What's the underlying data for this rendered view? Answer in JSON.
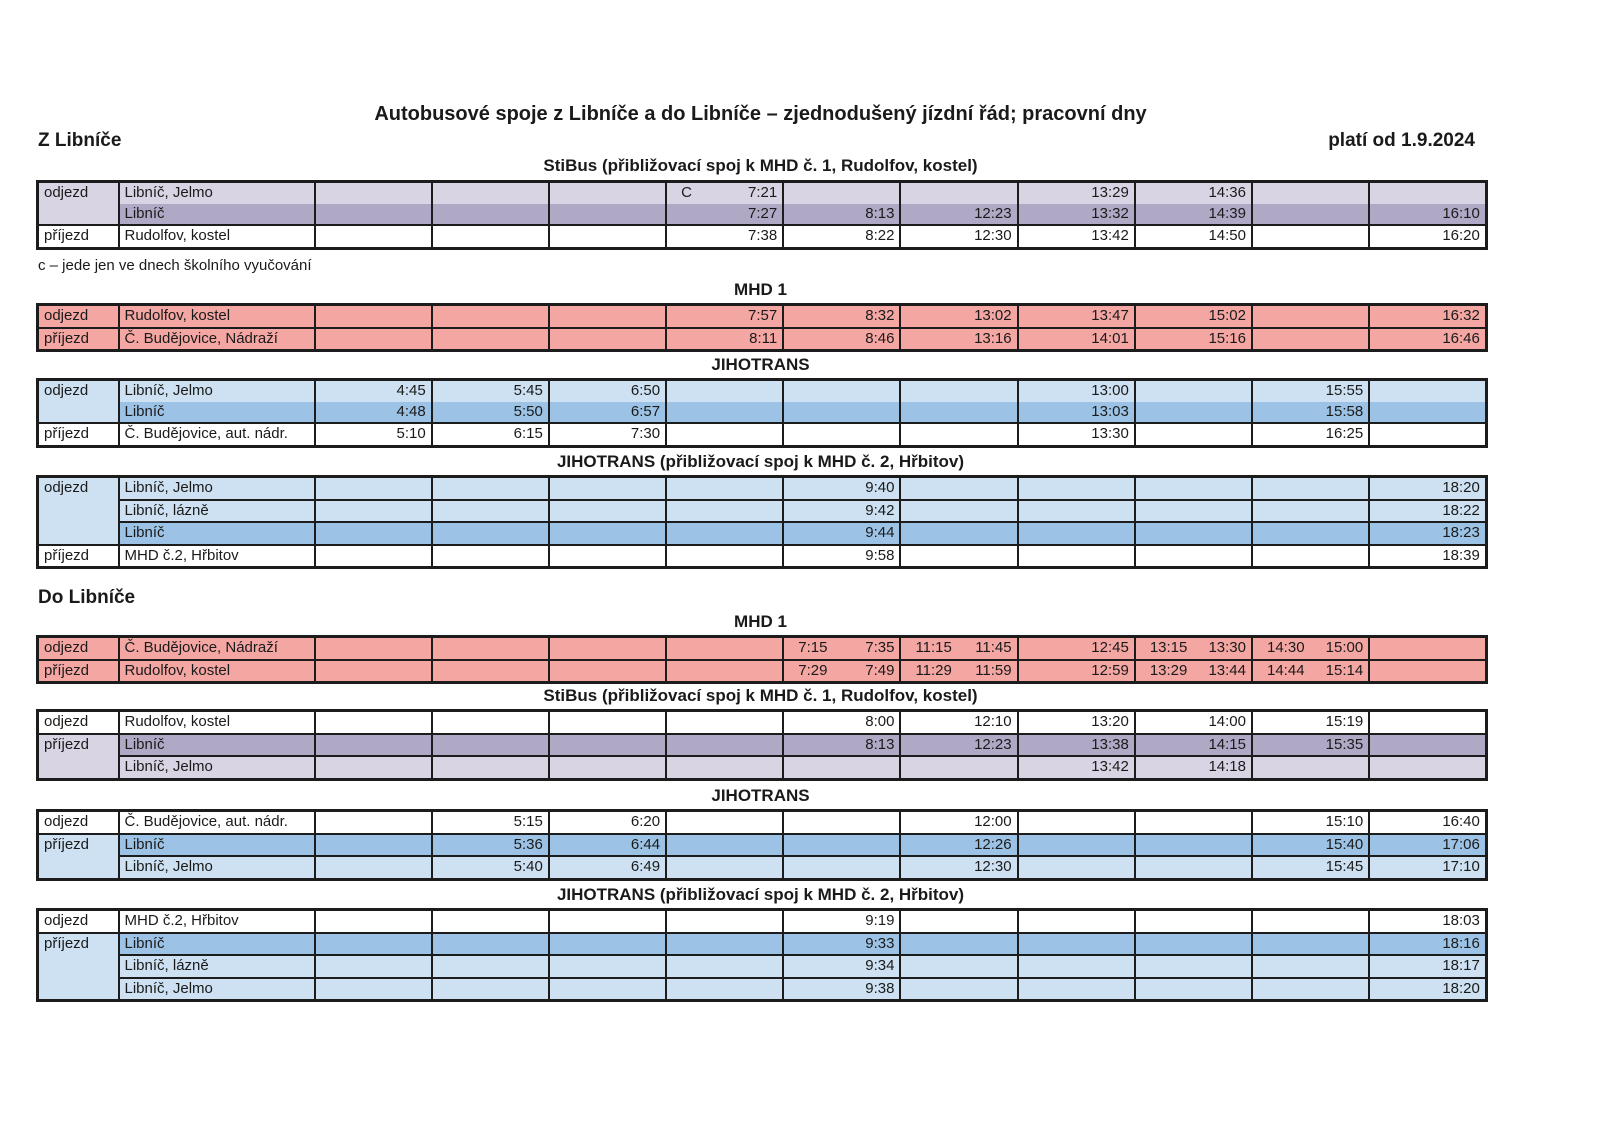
{
  "page": {
    "title": "Autobusové spoje z Libníče a do Libníče – zjednodušený jízdní řád; pracovní dny",
    "heading_from": "Z Libníče",
    "heading_to": "Do Libníče",
    "valid_from": "platí od 1.9.2024",
    "note": "c – jede jen ve dnech školního vyučování"
  },
  "colors": {
    "white": "#ffffff",
    "lavender_light": "#d9d4e3",
    "lavender_medium": "#b0a9c6",
    "pink": "#f4a6a3",
    "blue_light": "#cde1f2",
    "blue_medium": "#9cc3e5"
  },
  "tables": [
    {
      "id": "stibus-z-libnice",
      "heading": "StiBus (přibližovací spoj k MHD č. 1, Rudolfov, kostel)",
      "rows": [
        {
          "label": "odjezd",
          "label_rowspan": 2,
          "label_bg": "lavender_light",
          "stop": "Libníč, Jelmo",
          "bg": "lavender_light",
          "no_border_below": true,
          "cells": [
            "",
            "",
            "",
            {
              "l": "C",
              "r": "7:21"
            },
            "",
            "",
            "13:29",
            "14:36",
            "",
            ""
          ]
        },
        {
          "stop": "Libníč",
          "bg": "lavender_medium",
          "cells": [
            "",
            "",
            "",
            "7:27",
            "8:13",
            "12:23",
            "13:32",
            "14:39",
            "",
            "16:10"
          ]
        },
        {
          "label": "příjezd",
          "label_bg": "white",
          "stop": "Rudolfov, kostel",
          "bg": "white",
          "cells": [
            "",
            "",
            "",
            "7:38",
            "8:22",
            "12:30",
            "13:42",
            "14:50",
            "",
            "16:20"
          ]
        }
      ]
    },
    {
      "id": "mhd1-z-libnice",
      "heading": "MHD 1",
      "rows": [
        {
          "label": "odjezd",
          "label_bg": "pink",
          "stop": "Rudolfov, kostel",
          "bg": "pink",
          "cells": [
            "",
            "",
            "",
            "7:57",
            "8:32",
            "13:02",
            "13:47",
            "15:02",
            "",
            "16:32"
          ]
        },
        {
          "label": "příjezd",
          "label_bg": "pink",
          "stop": "Č. Budějovice, Nádraží",
          "bg": "pink",
          "cells": [
            "",
            "",
            "",
            "8:11",
            "8:46",
            "13:16",
            "14:01",
            "15:16",
            "",
            "16:46"
          ]
        }
      ]
    },
    {
      "id": "jihotrans-z-libnice",
      "heading": "JIHOTRANS",
      "rows": [
        {
          "label": "odjezd",
          "label_rowspan": 2,
          "label_bg": "blue_light",
          "stop": "Libníč, Jelmo",
          "bg": "blue_light",
          "no_border_below": true,
          "cells": [
            "4:45",
            "5:45",
            "6:50",
            "",
            "",
            "",
            "13:00",
            "",
            "15:55",
            ""
          ]
        },
        {
          "stop": "Libníč",
          "bg": "blue_medium",
          "cells": [
            "4:48",
            "5:50",
            "6:57",
            "",
            "",
            "",
            "13:03",
            "",
            "15:58",
            ""
          ]
        },
        {
          "label": "příjezd",
          "label_bg": "white",
          "stop": "Č. Budějovice, aut. nádr.",
          "bg": "white",
          "cells": [
            "5:10",
            "6:15",
            "7:30",
            "",
            "",
            "",
            "13:30",
            "",
            "16:25",
            ""
          ]
        }
      ]
    },
    {
      "id": "jihotrans-pribl-z-libnice",
      "heading": "JIHOTRANS (přibližovací spoj k MHD č. 2, Hřbitov)",
      "rows": [
        {
          "label": "odjezd",
          "label_rowspan": 3,
          "label_bg": "blue_light",
          "stop": "Libníč, Jelmo",
          "bg": "blue_light",
          "cells": [
            "",
            "",
            "",
            "",
            "9:40",
            "",
            "",
            "",
            "",
            "18:20"
          ]
        },
        {
          "stop": "Libníč, lázně",
          "bg": "blue_light",
          "cells": [
            "",
            "",
            "",
            "",
            "9:42",
            "",
            "",
            "",
            "",
            "18:22"
          ]
        },
        {
          "stop": "Libníč",
          "bg": "blue_medium",
          "cells": [
            "",
            "",
            "",
            "",
            "9:44",
            "",
            "",
            "",
            "",
            "18:23"
          ]
        },
        {
          "label": "příjezd",
          "label_bg": "white",
          "stop": "MHD č.2, Hřbitov",
          "bg": "white",
          "cells": [
            "",
            "",
            "",
            "",
            "9:58",
            "",
            "",
            "",
            "",
            "18:39"
          ]
        }
      ]
    },
    {
      "id": "mhd1-do-libnice",
      "heading": "MHD 1",
      "rows": [
        {
          "label": "odjezd",
          "label_bg": "pink",
          "stop": "Č. Budějovice, Nádraží",
          "bg": "pink",
          "cells": [
            "",
            "",
            "",
            "",
            {
              "l": "7:15",
              "r": "7:35"
            },
            {
              "l": "11:15",
              "r": "11:45"
            },
            "12:45",
            {
              "l": "13:15",
              "r": "13:30"
            },
            {
              "l": "14:30",
              "r": "15:00"
            },
            ""
          ]
        },
        {
          "label": "příjezd",
          "label_bg": "pink",
          "stop": "Rudolfov, kostel",
          "bg": "pink",
          "cells": [
            "",
            "",
            "",
            "",
            {
              "l": "7:29",
              "r": "7:49"
            },
            {
              "l": "11:29",
              "r": "11:59"
            },
            "12:59",
            {
              "l": "13:29",
              "r": "13:44"
            },
            {
              "l": "14:44",
              "r": "15:14"
            },
            ""
          ]
        }
      ]
    },
    {
      "id": "stibus-do-libnice",
      "heading": "StiBus (přibližovací spoj k MHD č. 1, Rudolfov, kostel)",
      "rows": [
        {
          "label": "odjezd",
          "label_bg": "white",
          "stop": "Rudolfov, kostel",
          "bg": "white",
          "cells": [
            "",
            "",
            "",
            "",
            "8:00",
            "12:10",
            "13:20",
            "14:00",
            "15:19",
            ""
          ]
        },
        {
          "label": "příjezd",
          "label_rowspan": 2,
          "label_bg": "lavender_light",
          "stop": "Libníč",
          "bg": "lavender_medium",
          "cells": [
            "",
            "",
            "",
            "",
            "8:13",
            "12:23",
            "13:38",
            "14:15",
            "15:35",
            ""
          ]
        },
        {
          "stop": "Libníč, Jelmo",
          "bg": "lavender_light",
          "cells": [
            "",
            "",
            "",
            "",
            "",
            "",
            "13:42",
            "14:18",
            "",
            ""
          ]
        }
      ]
    },
    {
      "id": "jihotrans-do-libnice",
      "heading": "JIHOTRANS",
      "rows": [
        {
          "label": "odjezd",
          "label_bg": "white",
          "stop": "Č. Budějovice, aut. nádr.",
          "bg": "white",
          "cells": [
            "",
            "5:15",
            "6:20",
            "",
            "",
            "12:00",
            "",
            "",
            "15:10",
            "16:40"
          ]
        },
        {
          "label": "příjezd",
          "label_rowspan": 2,
          "label_bg": "blue_light",
          "stop": "Libníč",
          "bg": "blue_medium",
          "cells": [
            "",
            "5:36",
            "6:44",
            "",
            "",
            "12:26",
            "",
            "",
            "15:40",
            "17:06"
          ]
        },
        {
          "stop": "Libníč, Jelmo",
          "bg": "blue_light",
          "cells": [
            "",
            "5:40",
            "6:49",
            "",
            "",
            "12:30",
            "",
            "",
            "15:45",
            "17:10"
          ]
        }
      ]
    },
    {
      "id": "jihotrans-pribl-do-libnice",
      "heading": "JIHOTRANS (přibližovací spoj k MHD č. 2, Hřbitov)",
      "rows": [
        {
          "label": "odjezd",
          "label_bg": "white",
          "stop": "MHD č.2, Hřbitov",
          "bg": "white",
          "cells": [
            "",
            "",
            "",
            "",
            "9:19",
            "",
            "",
            "",
            "",
            "18:03"
          ]
        },
        {
          "label": "příjezd",
          "label_rowspan": 3,
          "label_bg": "blue_light",
          "stop": "Libníč",
          "bg": "blue_medium",
          "cells": [
            "",
            "",
            "",
            "",
            "9:33",
            "",
            "",
            "",
            "",
            "18:16"
          ]
        },
        {
          "stop": "Libníč, lázně",
          "bg": "blue_light",
          "cells": [
            "",
            "",
            "",
            "",
            "9:34",
            "",
            "",
            "",
            "",
            "18:17"
          ]
        },
        {
          "stop": "Libníč, Jelmo",
          "bg": "blue_light",
          "cells": [
            "",
            "",
            "",
            "",
            "9:38",
            "",
            "",
            "",
            "",
            "18:20"
          ]
        }
      ]
    }
  ]
}
